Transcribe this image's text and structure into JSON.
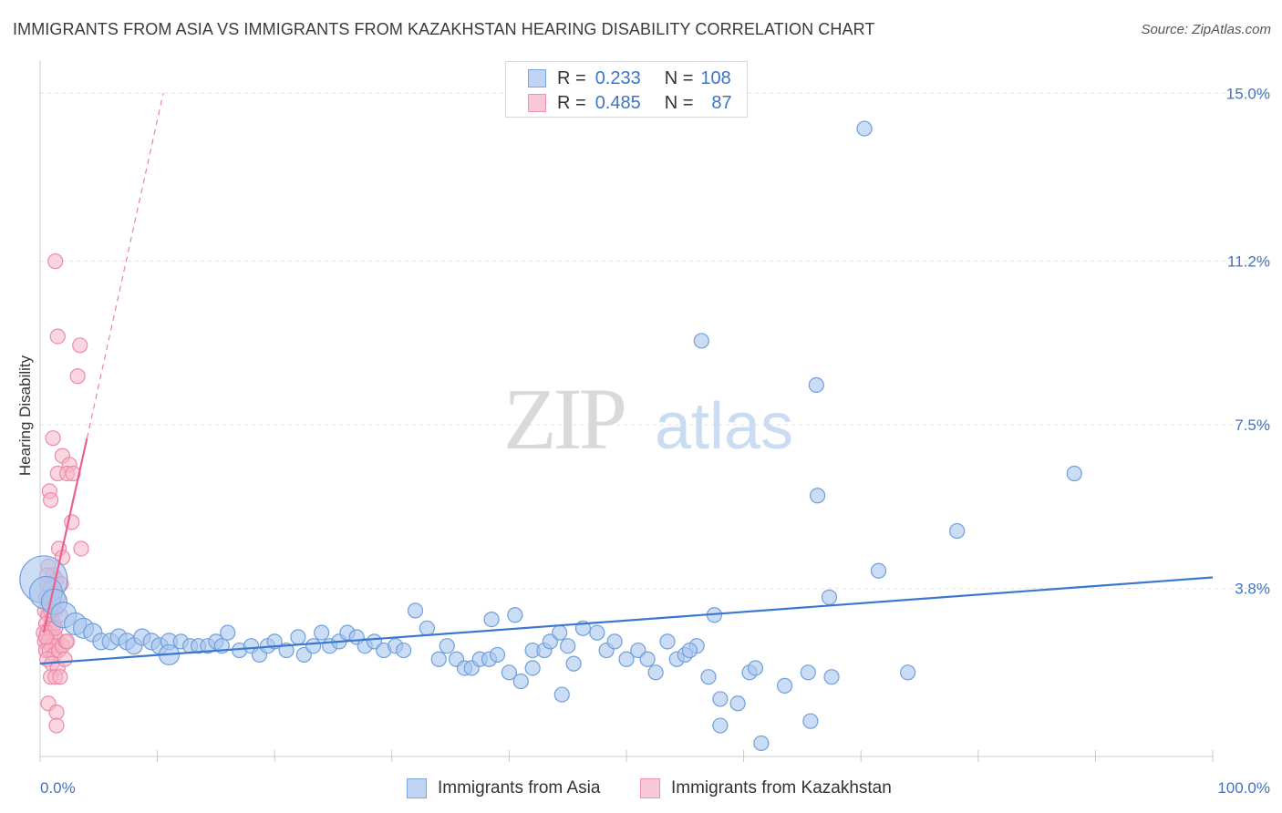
{
  "title": "IMMIGRANTS FROM ASIA VS IMMIGRANTS FROM KAZAKHSTAN HEARING DISABILITY CORRELATION CHART",
  "source": "Source: ZipAtlas.com",
  "watermark": {
    "zip": "ZIP",
    "atlas": "atlas"
  },
  "legend": {
    "series1": {
      "r_label": "R =",
      "r_value": "0.233",
      "n_label": "N =",
      "n_value": "108"
    },
    "series2": {
      "r_label": "R =",
      "r_value": "0.485",
      "n_label": "N =",
      "n_value": "87"
    }
  },
  "colors": {
    "asia_fill": "#a9c7ef",
    "asia_stroke": "#6f9fdc",
    "asia_line": "#3a78d0",
    "kaz_fill": "#f6b5c8",
    "kaz_stroke": "#ee8aa8",
    "kaz_line": "#e8628c",
    "axis_label": "#3e74c8",
    "grid": "#e3e3e3"
  },
  "chart_data": {
    "type": "scatter",
    "title": "IMMIGRANTS FROM ASIA VS IMMIGRANTS FROM KAZAKHSTAN HEARING DISABILITY CORRELATION CHART",
    "xlabel": "",
    "ylabel": "Hearing Disability",
    "xlim": [
      0,
      100
    ],
    "ylim": [
      0,
      15.5
    ],
    "x_tick_labels": [
      "0.0%",
      "100.0%"
    ],
    "y_ticks": [
      3.8,
      7.5,
      11.2,
      15.0
    ],
    "y_tick_labels": [
      "3.8%",
      "7.5%",
      "11.2%",
      "15.0%"
    ],
    "legend_position": "bottom",
    "series": [
      {
        "name": "Immigrants from Asia",
        "r": 0.233,
        "n": 108,
        "trend": {
          "x": [
            0,
            100
          ],
          "y": [
            2.1,
            4.05
          ]
        },
        "points": [
          [
            0.3,
            4.0,
            26
          ],
          [
            0.5,
            3.7,
            18
          ],
          [
            1.2,
            3.5,
            14
          ],
          [
            2.0,
            3.2,
            14
          ],
          [
            3.0,
            3.0,
            12
          ],
          [
            3.7,
            2.9,
            11
          ],
          [
            4.5,
            2.8,
            10
          ],
          [
            5.2,
            2.6,
            9
          ],
          [
            6.0,
            2.6,
            9
          ],
          [
            6.7,
            2.7,
            9
          ],
          [
            7.4,
            2.6,
            9
          ],
          [
            8.0,
            2.5,
            9
          ],
          [
            8.7,
            2.7,
            9
          ],
          [
            9.5,
            2.6,
            9
          ],
          [
            10.2,
            2.5,
            9
          ],
          [
            11.0,
            2.6,
            9
          ],
          [
            11.0,
            2.3,
            11
          ],
          [
            12.0,
            2.6,
            8
          ],
          [
            12.8,
            2.5,
            8
          ],
          [
            13.5,
            2.5,
            8
          ],
          [
            14.3,
            2.5,
            8
          ],
          [
            15.0,
            2.6,
            8
          ],
          [
            15.5,
            2.5,
            8
          ],
          [
            16.0,
            2.8,
            8
          ],
          [
            17.0,
            2.4,
            8
          ],
          [
            18.0,
            2.5,
            8
          ],
          [
            18.7,
            2.3,
            8
          ],
          [
            19.4,
            2.5,
            8
          ],
          [
            20.0,
            2.6,
            8
          ],
          [
            21.0,
            2.4,
            8
          ],
          [
            22.0,
            2.7,
            8
          ],
          [
            22.5,
            2.3,
            8
          ],
          [
            23.3,
            2.5,
            8
          ],
          [
            24.0,
            2.8,
            8
          ],
          [
            24.7,
            2.5,
            8
          ],
          [
            25.5,
            2.6,
            8
          ],
          [
            26.2,
            2.8,
            8
          ],
          [
            27.0,
            2.7,
            8
          ],
          [
            27.7,
            2.5,
            8
          ],
          [
            28.5,
            2.6,
            8
          ],
          [
            29.3,
            2.4,
            8
          ],
          [
            30.3,
            2.5,
            8
          ],
          [
            31.0,
            2.4,
            8
          ],
          [
            32.0,
            3.3,
            8
          ],
          [
            33.0,
            2.9,
            8
          ],
          [
            34.0,
            2.2,
            8
          ],
          [
            34.7,
            2.5,
            8
          ],
          [
            35.5,
            2.2,
            8
          ],
          [
            36.2,
            2.0,
            8
          ],
          [
            36.8,
            2.0,
            8
          ],
          [
            37.5,
            2.2,
            8
          ],
          [
            38.3,
            2.2,
            8
          ],
          [
            39.0,
            2.3,
            8
          ],
          [
            38.5,
            3.1,
            8
          ],
          [
            40.5,
            3.2,
            8
          ],
          [
            40.0,
            1.9,
            8
          ],
          [
            41.0,
            1.7,
            8
          ],
          [
            42.0,
            2.4,
            8
          ],
          [
            43.0,
            2.4,
            8
          ],
          [
            43.5,
            2.6,
            8
          ],
          [
            44.3,
            2.8,
            8
          ],
          [
            44.5,
            1.4,
            8
          ],
          [
            42.0,
            2.0,
            8
          ],
          [
            45.0,
            2.5,
            8
          ],
          [
            45.5,
            2.1,
            8
          ],
          [
            46.3,
            2.9,
            8
          ],
          [
            47.5,
            2.8,
            8
          ],
          [
            48.3,
            2.4,
            8
          ],
          [
            49.0,
            2.6,
            8
          ],
          [
            50.0,
            2.2,
            8
          ],
          [
            51.0,
            2.4,
            8
          ],
          [
            51.8,
            2.2,
            8
          ],
          [
            52.5,
            1.9,
            8
          ],
          [
            53.5,
            2.6,
            8
          ],
          [
            54.3,
            2.2,
            8
          ],
          [
            55.0,
            2.3,
            8
          ],
          [
            56.0,
            2.5,
            8
          ],
          [
            57.0,
            1.8,
            8
          ],
          [
            58.0,
            1.3,
            8
          ],
          [
            58.0,
            0.7,
            8
          ],
          [
            59.5,
            1.2,
            8
          ],
          [
            60.5,
            1.9,
            8
          ],
          [
            61.0,
            2.0,
            8
          ],
          [
            61.5,
            0.3,
            8
          ],
          [
            63.5,
            1.6,
            8
          ],
          [
            65.5,
            1.9,
            8
          ],
          [
            65.7,
            0.8,
            8
          ],
          [
            67.3,
            3.6,
            8
          ],
          [
            67.5,
            1.8,
            8
          ],
          [
            71.5,
            4.2,
            8
          ],
          [
            74.0,
            1.9,
            8
          ],
          [
            66.2,
            8.4,
            8
          ],
          [
            56.4,
            9.4,
            8
          ],
          [
            70.3,
            14.2,
            8
          ],
          [
            66.3,
            5.9,
            8
          ],
          [
            78.2,
            5.1,
            8
          ],
          [
            88.2,
            6.4,
            8
          ],
          [
            57.5,
            3.2,
            8
          ],
          [
            55.4,
            2.4,
            8
          ]
        ]
      },
      {
        "name": "Immigrants from Kazakhstan",
        "r": 0.485,
        "n": 87,
        "trend": {
          "x": [
            0.3,
            4.0
          ],
          "y": [
            2.8,
            7.2
          ]
        },
        "trend_extension": {
          "x": [
            4.0,
            10.5
          ],
          "y": [
            7.2,
            15.0
          ]
        },
        "points": [
          [
            1.3,
            11.2
          ],
          [
            1.5,
            9.5
          ],
          [
            3.4,
            9.3
          ],
          [
            3.2,
            8.6
          ],
          [
            1.1,
            7.2
          ],
          [
            1.9,
            6.8
          ],
          [
            2.5,
            6.6
          ],
          [
            1.5,
            6.4
          ],
          [
            2.3,
            6.4
          ],
          [
            2.8,
            6.4
          ],
          [
            0.8,
            6.0
          ],
          [
            0.9,
            5.8
          ],
          [
            2.7,
            5.3
          ],
          [
            1.6,
            4.7
          ],
          [
            3.5,
            4.7
          ],
          [
            1.9,
            4.5
          ],
          [
            0.7,
            4.3
          ],
          [
            1.1,
            4.1
          ],
          [
            1.4,
            4.0
          ],
          [
            0.6,
            3.9
          ],
          [
            0.9,
            3.8
          ],
          [
            1.2,
            3.7
          ],
          [
            0.5,
            3.6
          ],
          [
            0.8,
            3.5
          ],
          [
            1.0,
            3.4
          ],
          [
            1.3,
            3.3
          ],
          [
            0.4,
            3.3
          ],
          [
            0.7,
            3.2
          ],
          [
            1.0,
            3.1
          ],
          [
            1.2,
            3.0
          ],
          [
            0.5,
            3.0
          ],
          [
            0.8,
            2.9
          ],
          [
            1.1,
            2.9
          ],
          [
            0.3,
            2.8
          ],
          [
            0.6,
            2.8
          ],
          [
            0.9,
            2.7
          ],
          [
            1.3,
            2.7
          ],
          [
            0.4,
            2.6
          ],
          [
            0.7,
            2.6
          ],
          [
            1.0,
            2.5
          ],
          [
            1.4,
            2.5
          ],
          [
            0.5,
            2.4
          ],
          [
            0.8,
            2.4
          ],
          [
            1.2,
            2.3
          ],
          [
            1.6,
            2.4
          ],
          [
            1.9,
            2.5
          ],
          [
            2.2,
            2.6
          ],
          [
            0.6,
            2.2
          ],
          [
            1.0,
            2.1
          ],
          [
            1.5,
            2.0
          ],
          [
            0.9,
            1.8
          ],
          [
            1.3,
            1.8
          ],
          [
            1.7,
            1.8
          ],
          [
            0.7,
            1.2
          ],
          [
            1.4,
            1.0
          ],
          [
            1.4,
            0.7
          ],
          [
            2.3,
            2.6
          ],
          [
            2.1,
            2.2
          ],
          [
            1.7,
            3.2
          ],
          [
            1.5,
            3.6
          ],
          [
            0.6,
            4.1
          ],
          [
            1.8,
            3.9
          ],
          [
            0.9,
            3.3
          ],
          [
            1.3,
            2.9
          ],
          [
            0.5,
            2.7
          ]
        ]
      }
    ]
  },
  "bottom_legend": {
    "asia": "Immigrants from Asia",
    "kaz": "Immigrants from Kazakhstan"
  }
}
